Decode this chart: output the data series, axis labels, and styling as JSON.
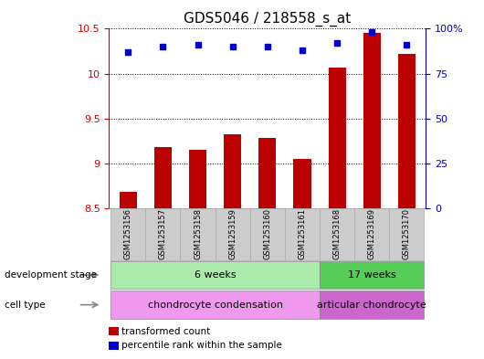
{
  "title": "GDS5046 / 218558_s_at",
  "samples": [
    "GSM1253156",
    "GSM1253157",
    "GSM1253158",
    "GSM1253159",
    "GSM1253160",
    "GSM1253161",
    "GSM1253168",
    "GSM1253169",
    "GSM1253170"
  ],
  "transformed_counts": [
    8.68,
    9.18,
    9.15,
    9.32,
    9.28,
    9.05,
    10.07,
    10.45,
    10.22
  ],
  "percentile_ranks": [
    87,
    90,
    91,
    90,
    90,
    88,
    92,
    98,
    91
  ],
  "bar_color": "#bb0000",
  "dot_color": "#0000cc",
  "ylim_left": [
    8.5,
    10.5
  ],
  "ylim_right": [
    0,
    100
  ],
  "yticks_left": [
    8.5,
    9.0,
    9.5,
    10.0,
    10.5
  ],
  "yticks_right": [
    0,
    25,
    50,
    75,
    100
  ],
  "ytick_labels_left": [
    "8.5",
    "9",
    "9.5",
    "10",
    "10.5"
  ],
  "ytick_labels_right": [
    "0",
    "25",
    "50",
    "75",
    "100%"
  ],
  "grid_dotted_values": [
    9.0,
    9.5,
    10.0,
    10.5
  ],
  "dev_stage_groups": [
    {
      "label": "6 weeks",
      "start": 0,
      "end": 5,
      "color": "#aaeaaa"
    },
    {
      "label": "17 weeks",
      "start": 6,
      "end": 8,
      "color": "#55cc55"
    }
  ],
  "cell_type_groups": [
    {
      "label": "chondrocyte condensation",
      "start": 0,
      "end": 5,
      "color": "#ee99ee"
    },
    {
      "label": "articular chondrocyte",
      "start": 6,
      "end": 8,
      "color": "#cc66cc"
    }
  ],
  "dev_stage_label": "development stage",
  "cell_type_label": "cell type",
  "legend_bar_label": "transformed count",
  "legend_dot_label": "percentile rank within the sample",
  "bar_width": 0.5,
  "base_value": 8.5,
  "title_fontsize": 11,
  "tick_fontsize": 8,
  "axis_left_color": "#cc0000",
  "axis_right_color": "#0000bb",
  "background_color": "#ffffff",
  "sample_label_bg": "#cccccc",
  "sample_label_border": "#aaaaaa"
}
